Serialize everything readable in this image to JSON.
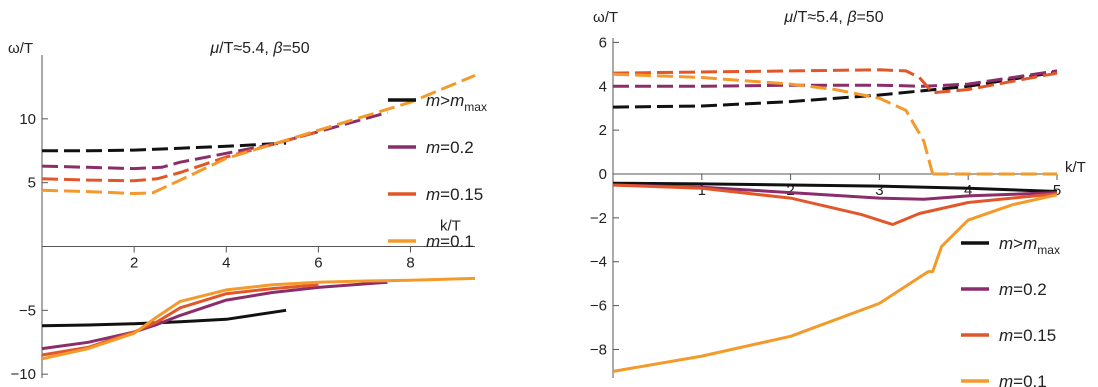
{
  "chart_data": [
    {
      "type": "line",
      "title": "μ/T≈5.4, β=50",
      "title_parts": {
        "mu": "μ",
        "over_t": "/T≈5.4, ",
        "beta": "β",
        "beta_val": "=50"
      },
      "xlabel": "k/T",
      "ylabel": "ω/T",
      "xlim": [
        0,
        9.4
      ],
      "ylim": [
        -10.3,
        15
      ],
      "xticks": [
        2,
        4,
        6,
        8
      ],
      "yticks": [
        -10,
        -5,
        5,
        10
      ],
      "grid": false,
      "legend_position": "right",
      "legend": [
        {
          "label": "m>m",
          "sub": "max",
          "color": "#111111"
        },
        {
          "label": "m=0.2",
          "color": "#8c2d6b"
        },
        {
          "label": "m=0.15",
          "color": "#e2572a"
        },
        {
          "label": "m=0.1",
          "color": "#f39a2a"
        }
      ],
      "series": [
        {
          "legend_index": 0,
          "dashed": true,
          "points": [
            [
              0,
              7.5
            ],
            [
              1,
              7.5
            ],
            [
              2,
              7.55
            ],
            [
              3,
              7.7
            ],
            [
              4,
              7.85
            ],
            [
              5.3,
              8.1
            ]
          ]
        },
        {
          "legend_index": 1,
          "dashed": true,
          "points": [
            [
              0,
              6.3
            ],
            [
              1,
              6.2
            ],
            [
              2,
              6.1
            ],
            [
              2.6,
              6.2
            ],
            [
              3,
              6.6
            ],
            [
              4,
              7.3
            ],
            [
              5,
              8.0
            ],
            [
              6,
              9.0
            ],
            [
              7.5,
              10.5
            ]
          ]
        },
        {
          "legend_index": 2,
          "dashed": true,
          "points": [
            [
              0,
              5.3
            ],
            [
              1,
              5.2
            ],
            [
              2,
              5.15
            ],
            [
              2.5,
              5.3
            ],
            [
              3,
              5.8
            ],
            [
              4,
              7.0
            ],
            [
              5,
              8.0
            ],
            [
              6,
              9.0
            ]
          ]
        },
        {
          "legend_index": 3,
          "dashed": true,
          "points": [
            [
              0,
              4.4
            ],
            [
              1,
              4.3
            ],
            [
              2,
              4.15
            ],
            [
              2.4,
              4.2
            ],
            [
              3,
              5.2
            ],
            [
              4,
              6.9
            ],
            [
              5,
              8.0
            ],
            [
              6,
              9.1
            ],
            [
              7,
              10.2
            ],
            [
              8,
              11.3
            ],
            [
              9.4,
              13.4
            ]
          ]
        },
        {
          "legend_index": 0,
          "dashed": false,
          "points": [
            [
              0,
              -6.2
            ],
            [
              1,
              -6.15
            ],
            [
              2,
              -6.05
            ],
            [
              3,
              -5.9
            ],
            [
              4,
              -5.7
            ],
            [
              5.3,
              -5.0
            ]
          ]
        },
        {
          "legend_index": 1,
          "dashed": false,
          "points": [
            [
              0,
              -8.0
            ],
            [
              1,
              -7.5
            ],
            [
              2,
              -6.7
            ],
            [
              2.5,
              -6.1
            ],
            [
              3,
              -5.4
            ],
            [
              4,
              -4.2
            ],
            [
              5,
              -3.6
            ],
            [
              6,
              -3.2
            ],
            [
              7.5,
              -2.8
            ]
          ]
        },
        {
          "legend_index": 2,
          "dashed": false,
          "points": [
            [
              0,
              -8.5
            ],
            [
              1,
              -7.9
            ],
            [
              2,
              -6.7
            ],
            [
              2.5,
              -5.9
            ],
            [
              3,
              -4.8
            ],
            [
              4,
              -3.7
            ],
            [
              5,
              -3.3
            ],
            [
              6,
              -3.0
            ]
          ]
        },
        {
          "legend_index": 3,
          "dashed": false,
          "points": [
            [
              0,
              -8.8
            ],
            [
              1,
              -8.0
            ],
            [
              2,
              -6.8
            ],
            [
              2.5,
              -5.5
            ],
            [
              3,
              -4.3
            ],
            [
              4,
              -3.4
            ],
            [
              5,
              -3.0
            ],
            [
              6,
              -2.8
            ],
            [
              7,
              -2.7
            ],
            [
              8,
              -2.65
            ],
            [
              9.4,
              -2.5
            ]
          ]
        }
      ]
    },
    {
      "type": "line",
      "title": "μ/T≈5.4, β=50",
      "title_parts": {
        "mu": "μ",
        "over_t": "/T≈5.4, ",
        "beta": "β",
        "beta_val": "=50"
      },
      "xlabel": "k/T",
      "ylabel": "ω/T",
      "xlim": [
        0,
        5
      ],
      "ylim": [
        -9.3,
        6.2
      ],
      "xticks": [
        1,
        2,
        3,
        4,
        5
      ],
      "yticks": [
        -8,
        -6,
        -4,
        -2,
        0,
        2,
        4,
        6
      ],
      "grid": false,
      "legend_position": "bottom-right",
      "legend": [
        {
          "label": "m>m",
          "sub": "max",
          "color": "#111111"
        },
        {
          "label": "m=0.2",
          "color": "#8c2d6b"
        },
        {
          "label": "m=0.15",
          "color": "#e2572a"
        },
        {
          "label": "m=0.1",
          "color": "#f39a2a"
        }
      ],
      "series": [
        {
          "legend_index": 0,
          "dashed": true,
          "points": [
            [
              0,
              3.05
            ],
            [
              1,
              3.1
            ],
            [
              2,
              3.3
            ],
            [
              3,
              3.6
            ],
            [
              4,
              4.0
            ],
            [
              5,
              4.65
            ]
          ]
        },
        {
          "legend_index": 1,
          "dashed": true,
          "points": [
            [
              0,
              4.0
            ],
            [
              1,
              4.0
            ],
            [
              2,
              4.05
            ],
            [
              3,
              4.05
            ],
            [
              3.5,
              4.0
            ],
            [
              4,
              4.1
            ],
            [
              5,
              4.7
            ]
          ]
        },
        {
          "legend_index": 2,
          "dashed": true,
          "points": [
            [
              0,
              4.6
            ],
            [
              1,
              4.65
            ],
            [
              2,
              4.7
            ],
            [
              3,
              4.75
            ],
            [
              3.3,
              4.7
            ],
            [
              3.45,
              4.4
            ],
            [
              3.6,
              3.7
            ],
            [
              4,
              3.85
            ],
            [
              5,
              4.6
            ]
          ]
        },
        {
          "legend_index": 3,
          "dashed": true,
          "points": [
            [
              0,
              4.55
            ],
            [
              1,
              4.4
            ],
            [
              2,
              4.1
            ],
            [
              2.5,
              3.85
            ],
            [
              3,
              3.45
            ],
            [
              3.3,
              2.9
            ],
            [
              3.5,
              1.5
            ],
            [
              3.6,
              0
            ]
          ]
        },
        {
          "legend_index": 3,
          "dashed": true,
          "points": [
            [
              3.6,
              0
            ],
            [
              5,
              0
            ]
          ]
        },
        {
          "legend_index": 0,
          "dashed": false,
          "points": [
            [
              0,
              -0.42
            ],
            [
              1,
              -0.45
            ],
            [
              2,
              -0.5
            ],
            [
              3,
              -0.55
            ],
            [
              4,
              -0.65
            ],
            [
              5,
              -0.8
            ]
          ]
        },
        {
          "legend_index": 1,
          "dashed": false,
          "points": [
            [
              0,
              -0.5
            ],
            [
              1,
              -0.6
            ],
            [
              2,
              -0.85
            ],
            [
              3,
              -1.1
            ],
            [
              3.5,
              -1.15
            ],
            [
              4,
              -1.0
            ],
            [
              5,
              -0.85
            ]
          ]
        },
        {
          "legend_index": 2,
          "dashed": false,
          "points": [
            [
              0,
              -0.5
            ],
            [
              1,
              -0.65
            ],
            [
              2,
              -1.1
            ],
            [
              2.8,
              -1.85
            ],
            [
              3.15,
              -2.3
            ],
            [
              3.45,
              -1.8
            ],
            [
              4,
              -1.3
            ],
            [
              5,
              -0.9
            ]
          ]
        },
        {
          "legend_index": 3,
          "dashed": false,
          "points": [
            [
              0,
              -9.0
            ],
            [
              1,
              -8.3
            ],
            [
              2,
              -7.4
            ],
            [
              3,
              -5.9
            ],
            [
              3.55,
              -4.45
            ],
            [
              3.6,
              -4.45
            ],
            [
              3.7,
              -3.3
            ],
            [
              4,
              -2.1
            ],
            [
              4.5,
              -1.4
            ],
            [
              5,
              -0.95
            ]
          ]
        }
      ]
    }
  ]
}
